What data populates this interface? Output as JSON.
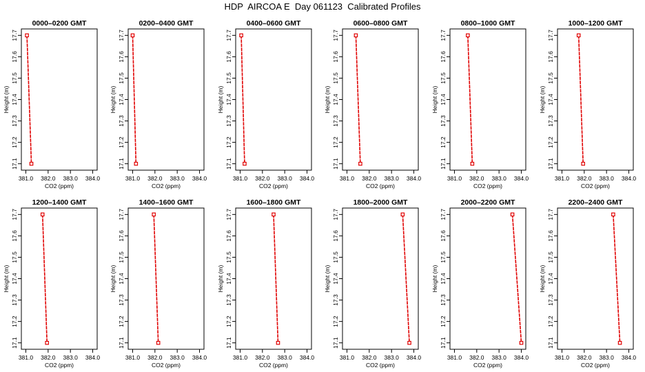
{
  "title": "HDP  AIRCOA E  Day 061123  Calibrated Profiles",
  "colors": {
    "series": "#e00000",
    "frame": "#000000"
  },
  "chart_defaults": {
    "xlabel": "CO2 (ppm)",
    "ylabel": "Height (m)",
    "xlim": [
      380.8,
      384.2
    ],
    "ylim": [
      17.07,
      17.73
    ],
    "xticks": [
      "381.0",
      "382.0",
      "383.0",
      "384.0"
    ],
    "yticks": [
      "17.1",
      "17.2",
      "17.3",
      "17.4",
      "17.5",
      "17.6",
      "17.7"
    ]
  },
  "chart_data": [
    {
      "type": "line",
      "title": "0000–0200 GMT",
      "points": [
        {
          "x": 381.05,
          "y": 17.7
        },
        {
          "x": 381.25,
          "y": 17.1
        }
      ]
    },
    {
      "type": "line",
      "title": "0200–0400 GMT",
      "points": [
        {
          "x": 381.0,
          "y": 17.7
        },
        {
          "x": 381.15,
          "y": 17.1
        }
      ]
    },
    {
      "type": "line",
      "title": "0400–0600 GMT",
      "points": [
        {
          "x": 381.05,
          "y": 17.7
        },
        {
          "x": 381.2,
          "y": 17.1
        }
      ]
    },
    {
      "type": "line",
      "title": "0600–0800 GMT",
      "points": [
        {
          "x": 381.4,
          "y": 17.7
        },
        {
          "x": 381.6,
          "y": 17.1
        }
      ]
    },
    {
      "type": "line",
      "title": "0800–1000 GMT",
      "points": [
        {
          "x": 381.6,
          "y": 17.7
        },
        {
          "x": 381.8,
          "y": 17.1
        }
      ]
    },
    {
      "type": "line",
      "title": "1000–1200 GMT",
      "points": [
        {
          "x": 381.75,
          "y": 17.7
        },
        {
          "x": 381.95,
          "y": 17.1
        }
      ]
    },
    {
      "type": "line",
      "title": "1200–1400 GMT",
      "points": [
        {
          "x": 381.75,
          "y": 17.7
        },
        {
          "x": 381.95,
          "y": 17.1
        }
      ]
    },
    {
      "type": "line",
      "title": "1400–1600 GMT",
      "points": [
        {
          "x": 381.95,
          "y": 17.7
        },
        {
          "x": 382.15,
          "y": 17.1
        }
      ]
    },
    {
      "type": "line",
      "title": "1600–1800 GMT",
      "points": [
        {
          "x": 382.5,
          "y": 17.7
        },
        {
          "x": 382.7,
          "y": 17.1
        }
      ]
    },
    {
      "type": "line",
      "title": "1800–2000 GMT",
      "points": [
        {
          "x": 383.5,
          "y": 17.7
        },
        {
          "x": 383.8,
          "y": 17.1
        }
      ]
    },
    {
      "type": "line",
      "title": "2000–2200 GMT",
      "points": [
        {
          "x": 383.6,
          "y": 17.7
        },
        {
          "x": 384.0,
          "y": 17.1
        }
      ]
    },
    {
      "type": "line",
      "title": "2200–2400 GMT",
      "points": [
        {
          "x": 383.3,
          "y": 17.7
        },
        {
          "x": 383.6,
          "y": 17.1
        }
      ]
    }
  ]
}
